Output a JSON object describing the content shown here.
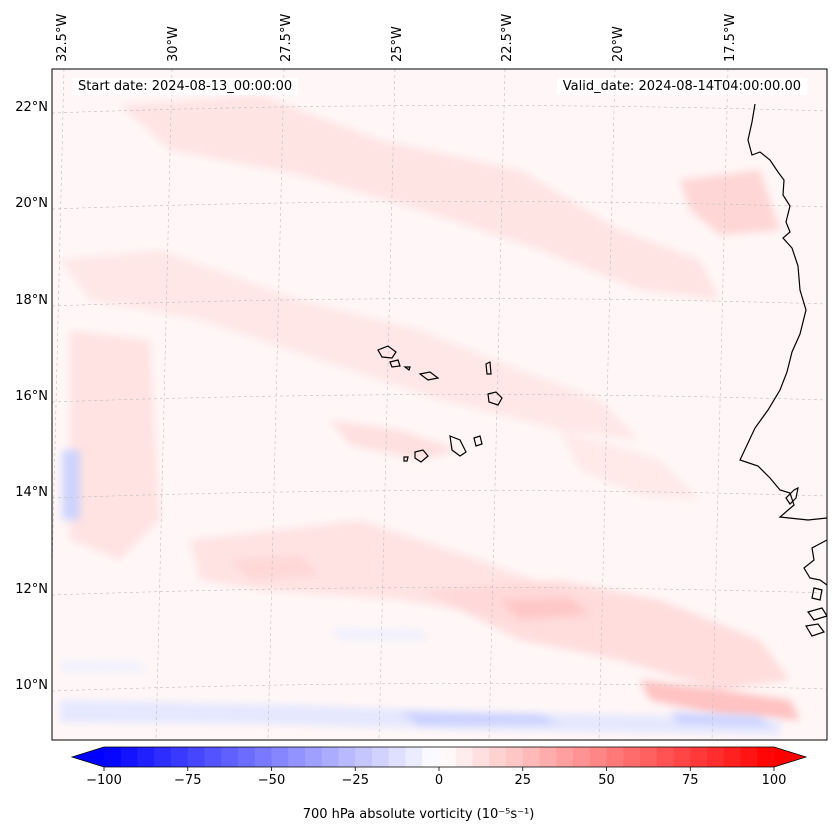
{
  "annotations": {
    "start_date": "Start date: 2024-08-13_00:00:00",
    "valid_date": "Valid_date: 2024-08-14T04:00:00.00"
  },
  "map": {
    "lon_labels": [
      "32.5°W",
      "30°W",
      "27.5°W",
      "25°W",
      "22.5°W",
      "20°W",
      "17.5°W"
    ],
    "lat_labels": [
      "22°N",
      "20°N",
      "18°N",
      "16°N",
      "14°N",
      "12°N",
      "10°N"
    ],
    "field": "700 hPa absolute vorticity",
    "colors": {
      "coastline": "#000000",
      "gridline": "#bdbdbd",
      "background": "#fff7f7",
      "positive": "#ff0000",
      "negative": "#0000ff"
    }
  },
  "colorbar": {
    "label": "700 hPa absolute vorticity (10⁻⁵s⁻¹)",
    "ticks": [
      "−100",
      "−75",
      "−50",
      "−25",
      "0",
      "25",
      "50",
      "75",
      "100"
    ],
    "range": [
      -100,
      100
    ],
    "step": 5,
    "colormap": "bwr"
  }
}
